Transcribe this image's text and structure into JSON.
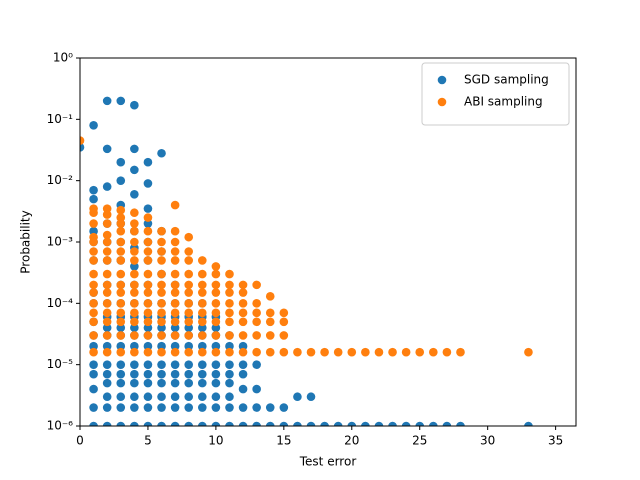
{
  "chart_data": {
    "type": "scatter",
    "xlabel": "Test error",
    "ylabel": "Probability",
    "xlim": [
      0,
      36.5
    ],
    "ylim": [
      1e-06,
      1
    ],
    "yscale": "log",
    "xticks": [
      0,
      5,
      10,
      15,
      20,
      25,
      30,
      35
    ],
    "yticks": [
      {
        "value": 1e-06,
        "label": "10⁻⁶"
      },
      {
        "value": 1e-05,
        "label": "10⁻⁵"
      },
      {
        "value": 0.0001,
        "label": "10⁻⁴"
      },
      {
        "value": 0.001,
        "label": "10⁻³"
      },
      {
        "value": 0.01,
        "label": "10⁻²"
      },
      {
        "value": 0.1,
        "label": "10⁻¹"
      },
      {
        "value": 1,
        "label": "10⁰"
      }
    ],
    "legend": "upper right",
    "series": [
      {
        "name": "SGD sampling",
        "color": "#1f77b4",
        "x": [
          0,
          1,
          1,
          1,
          1,
          1,
          1,
          1,
          1,
          1,
          1,
          1,
          1,
          1,
          1,
          1,
          1,
          2,
          2,
          2,
          2,
          2,
          2,
          2,
          2,
          2,
          2,
          2,
          2,
          2,
          2,
          2,
          2,
          2,
          2,
          3,
          3,
          3,
          3,
          3,
          3,
          3,
          3,
          3,
          3,
          3,
          3,
          3,
          3,
          3,
          3,
          3,
          3,
          3,
          4,
          4,
          4,
          4,
          4,
          4,
          4,
          4,
          4,
          4,
          4,
          4,
          4,
          4,
          4,
          4,
          4,
          4,
          4,
          5,
          5,
          5,
          5,
          5,
          5,
          5,
          5,
          5,
          5,
          5,
          5,
          5,
          5,
          5,
          5,
          5,
          5,
          6,
          6,
          6,
          6,
          6,
          6,
          6,
          6,
          6,
          6,
          6,
          6,
          6,
          6,
          6,
          7,
          7,
          7,
          7,
          7,
          7,
          7,
          7,
          7,
          7,
          7,
          7,
          8,
          8,
          8,
          8,
          8,
          8,
          8,
          8,
          8,
          8,
          8,
          9,
          9,
          9,
          9,
          9,
          9,
          9,
          9,
          9,
          9,
          9,
          10,
          10,
          10,
          10,
          10,
          10,
          10,
          10,
          10,
          10,
          11,
          11,
          11,
          11,
          11,
          11,
          11,
          11,
          12,
          12,
          12,
          12,
          12,
          12,
          13,
          13,
          13,
          13,
          14,
          14,
          15,
          15,
          16,
          16,
          17,
          17,
          18,
          19,
          20,
          21,
          22,
          23,
          24,
          25,
          26,
          27,
          28,
          33
        ],
        "values": [
          0.035,
          0.08,
          0.007,
          0.005,
          0.0015,
          0.001,
          0.0005,
          0.00015,
          0.0001,
          5e-05,
          3e-05,
          2e-05,
          1e-05,
          7e-06,
          4e-06,
          2e-06,
          1e-06,
          0.2,
          0.033,
          0.008,
          0.002,
          0.001,
          0.0005,
          0.0002,
          0.0001,
          6e-05,
          4e-05,
          3e-05,
          2e-05,
          1e-05,
          7e-06,
          5e-06,
          3e-06,
          2e-06,
          1e-06,
          0.2,
          0.02,
          0.01,
          0.004,
          0.002,
          0.001,
          0.0005,
          0.0002,
          0.0001,
          6e-05,
          4e-05,
          3e-05,
          2e-05,
          1e-05,
          7e-06,
          5e-06,
          3e-06,
          2e-06,
          1e-06,
          0.17,
          0.033,
          0.015,
          0.006,
          0.0015,
          0.0008,
          0.0004,
          0.0002,
          0.0001,
          6e-05,
          4e-05,
          3e-05,
          2e-05,
          1e-05,
          7e-06,
          5e-06,
          3e-06,
          2e-06,
          1e-06,
          0.02,
          0.009,
          0.0035,
          0.002,
          0.001,
          0.0005,
          0.0002,
          0.0001,
          6e-05,
          4e-05,
          3e-05,
          2e-05,
          1e-05,
          7e-06,
          5e-06,
          3e-06,
          2e-06,
          1e-06,
          0.028,
          0.0015,
          0.0007,
          0.0003,
          0.0001,
          6e-05,
          4e-05,
          3e-05,
          2e-05,
          1e-05,
          7e-06,
          5e-06,
          3e-06,
          2e-06,
          1e-06,
          0.0002,
          0.0001,
          6e-05,
          4e-05,
          3e-05,
          2e-05,
          1e-05,
          7e-06,
          5e-06,
          3e-06,
          2e-06,
          1e-06,
          0.0001,
          6e-05,
          4e-05,
          3e-05,
          2e-05,
          1e-05,
          7e-06,
          5e-06,
          3e-06,
          2e-06,
          1e-06,
          0.0001,
          6e-05,
          4e-05,
          3e-05,
          2e-05,
          1e-05,
          7e-06,
          5e-06,
          3e-06,
          2e-06,
          1e-06,
          6e-05,
          4e-05,
          3e-05,
          2e-05,
          1e-05,
          7e-06,
          5e-06,
          3e-06,
          2e-06,
          1e-06,
          3e-05,
          2e-05,
          1e-05,
          7e-06,
          5e-06,
          3e-06,
          2e-06,
          1e-06,
          2e-05,
          1e-05,
          7e-06,
          4e-06,
          2e-06,
          1e-06,
          1e-05,
          4e-06,
          2e-06,
          1e-06,
          2e-06,
          1e-06,
          2e-06,
          1e-06,
          3e-06,
          1e-06,
          3e-06,
          1e-06,
          1e-06,
          1e-06,
          1e-06,
          1e-06,
          1e-06,
          1e-06,
          1e-06,
          1e-06,
          1e-06,
          1e-06,
          1e-06,
          1e-06
        ]
      },
      {
        "name": "ABI sampling",
        "color": "#ff7f0e",
        "x": [
          0,
          1,
          1,
          1,
          1,
          1,
          1,
          1,
          1,
          1,
          1,
          1,
          1,
          1,
          1,
          1,
          2,
          2,
          2,
          2,
          2,
          2,
          2,
          2,
          2,
          2,
          2,
          2,
          2,
          2,
          2,
          3,
          3,
          3,
          3,
          3,
          3,
          3,
          3,
          3,
          3,
          3,
          3,
          3,
          3,
          3,
          4,
          4,
          4,
          4,
          4,
          4,
          4,
          4,
          4,
          4,
          4,
          4,
          4,
          4,
          5,
          5,
          5,
          5,
          5,
          5,
          5,
          5,
          5,
          5,
          5,
          5,
          5,
          6,
          6,
          6,
          6,
          6,
          6,
          6,
          6,
          6,
          6,
          6,
          6,
          7,
          7,
          7,
          7,
          7,
          7,
          7,
          7,
          7,
          7,
          7,
          7,
          7,
          8,
          8,
          8,
          8,
          8,
          8,
          8,
          8,
          8,
          8,
          8,
          9,
          9,
          9,
          9,
          9,
          9,
          9,
          9,
          9,
          10,
          10,
          10,
          10,
          10,
          10,
          10,
          10,
          10,
          11,
          11,
          11,
          11,
          11,
          11,
          11,
          11,
          12,
          12,
          12,
          12,
          12,
          12,
          12,
          13,
          13,
          13,
          13,
          13,
          13,
          14,
          14,
          14,
          14,
          14,
          15,
          15,
          15,
          15,
          16,
          17,
          18,
          19,
          20,
          21,
          22,
          23,
          24,
          25,
          26,
          27,
          28,
          33
        ],
        "values": [
          0.045,
          0.0035,
          0.003,
          0.002,
          0.0012,
          0.001,
          0.0007,
          0.0005,
          0.0003,
          0.0002,
          0.00015,
          0.0001,
          7e-05,
          5e-05,
          3e-05,
          1.6e-05,
          0.0035,
          0.0028,
          0.002,
          0.0013,
          0.001,
          0.0007,
          0.0005,
          0.0003,
          0.0002,
          0.00015,
          0.0001,
          7e-05,
          5e-05,
          3e-05,
          1.6e-05,
          0.0033,
          0.0025,
          0.002,
          0.0015,
          0.001,
          0.0007,
          0.0005,
          0.0003,
          0.0002,
          0.00015,
          0.0001,
          7e-05,
          5e-05,
          3e-05,
          1.6e-05,
          0.003,
          0.002,
          0.0015,
          0.001,
          0.0007,
          0.0005,
          0.0003,
          0.0002,
          0.00015,
          0.0001,
          7e-05,
          5e-05,
          3e-05,
          1.6e-05,
          0.0025,
          0.0015,
          0.001,
          0.0007,
          0.0005,
          0.0003,
          0.0002,
          0.00015,
          0.0001,
          7e-05,
          5e-05,
          3e-05,
          1.6e-05,
          0.0015,
          0.001,
          0.0007,
          0.0005,
          0.0003,
          0.0002,
          0.00015,
          0.0001,
          7e-05,
          5e-05,
          3e-05,
          1.6e-05,
          0.004,
          0.0015,
          0.001,
          0.0007,
          0.0005,
          0.0003,
          0.0002,
          0.00015,
          0.0001,
          7e-05,
          5e-05,
          3e-05,
          1.6e-05,
          0.0012,
          0.0007,
          0.0005,
          0.0003,
          0.0002,
          0.00015,
          0.0001,
          7e-05,
          5e-05,
          3e-05,
          1.6e-05,
          0.0005,
          0.0003,
          0.0002,
          0.00015,
          0.0001,
          7e-05,
          5e-05,
          3e-05,
          1.6e-05,
          0.0004,
          0.0003,
          0.0002,
          0.00015,
          0.0001,
          7e-05,
          5e-05,
          3e-05,
          1.6e-05,
          0.0003,
          0.0002,
          0.00015,
          0.0001,
          7e-05,
          5e-05,
          3e-05,
          1.6e-05,
          0.0002,
          0.00015,
          0.0001,
          7e-05,
          5e-05,
          3e-05,
          1.6e-05,
          0.0002,
          0.0001,
          7e-05,
          5e-05,
          3e-05,
          1.6e-05,
          0.00013,
          7e-05,
          5e-05,
          3e-05,
          1.6e-05,
          7e-05,
          5e-05,
          3e-05,
          1.6e-05,
          1.6e-05,
          1.6e-05,
          1.6e-05,
          1.6e-05,
          1.6e-05,
          1.6e-05,
          1.6e-05,
          1.6e-05,
          1.6e-05,
          1.6e-05,
          1.6e-05,
          1.6e-05,
          1.6e-05,
          1.6e-05
        ]
      }
    ]
  }
}
